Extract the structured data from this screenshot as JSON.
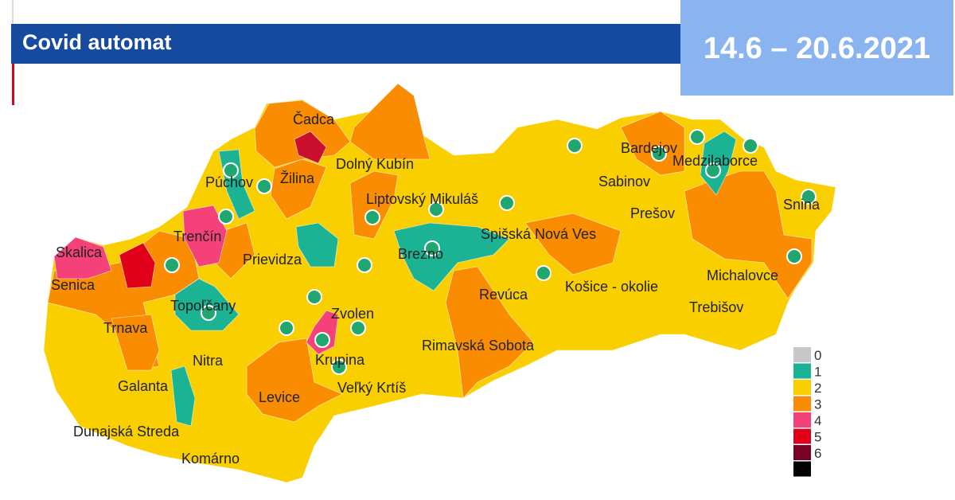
{
  "header": {
    "title": "Covid automat",
    "date_range": "14.6 – 20.6.2021"
  },
  "legend": [
    {
      "level": "0",
      "color": "#c8c8c8"
    },
    {
      "level": "1",
      "color": "#1bb394"
    },
    {
      "level": "2",
      "color": "#f9cf00"
    },
    {
      "level": "3",
      "color": "#f98c00"
    },
    {
      "level": "4",
      "color": "#f4417a"
    },
    {
      "level": "5",
      "color": "#e0001a"
    },
    {
      "level": "6",
      "color": "#7a0025"
    },
    {
      "level": "",
      "color": "#000000"
    }
  ],
  "districts": [
    "Čadca",
    "Žilina",
    "Dolný Kubín",
    "Púchov",
    "Trenčín",
    "Skalica",
    "Senica",
    "Prievidza",
    "Liptovský Mikuláš",
    "Bardejov",
    "Medzilaborce",
    "Sabinov",
    "Snina",
    "Prešov",
    "Spišská Nová Ves",
    "Brezno",
    "Topoľčany",
    "Trnava",
    "Zvolen",
    "Krupina",
    "Revúca",
    "Košice - okolie",
    "Michalovce",
    "Trebišov",
    "Rimavská Sobota",
    "Nitra",
    "Galanta",
    "Levice",
    "Veľký Krtíš",
    "Dunajská Streda",
    "Komárno"
  ],
  "map_colors": {
    "level1": "#1bb394",
    "level2": "#f9cf00",
    "level3": "#f98c00",
    "level4": "#f4417a",
    "level5": "#e0001a",
    "dot": "#20a66e"
  }
}
